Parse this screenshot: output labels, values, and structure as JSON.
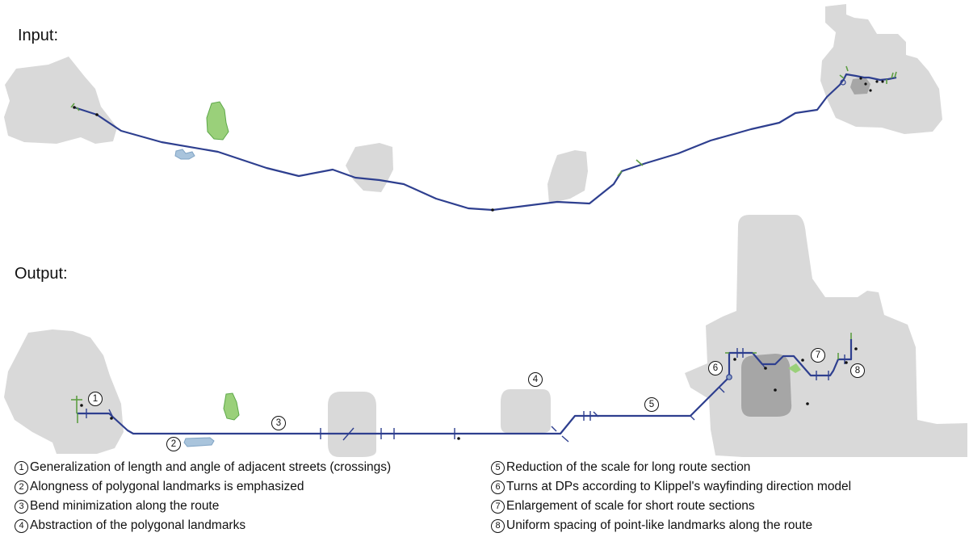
{
  "labels": {
    "input": "Input:",
    "output": "Output:"
  },
  "colors": {
    "settlement": "#d9d9d9",
    "settlement_dark": "#a6a6a6",
    "route": "#2e3f8f",
    "park": "#9ad07a",
    "park_stroke": "#5ea84a",
    "water": "#a9c4dc",
    "side_street": "#5e9e43"
  },
  "markers": [
    {
      "num": "1"
    },
    {
      "num": "2"
    },
    {
      "num": "3"
    },
    {
      "num": "4"
    },
    {
      "num": "5"
    },
    {
      "num": "6"
    },
    {
      "num": "7"
    },
    {
      "num": "8"
    }
  ],
  "legend": [
    {
      "num": "1",
      "text": "Generalization of length and angle of adjacent streets (crossings)"
    },
    {
      "num": "2",
      "text": "Alongness of polygonal landmarks is emphasized"
    },
    {
      "num": "3",
      "text": "Bend minimization along the route"
    },
    {
      "num": "4",
      "text": "Abstraction of the polygonal landmarks"
    },
    {
      "num": "5",
      "text": "Reduction of the scale for long route section"
    },
    {
      "num": "6",
      "text": "Turns at DPs according to Klippel's wayfinding direction model"
    },
    {
      "num": "7",
      "text": "Enlargement of scale for short route sections"
    },
    {
      "num": "8",
      "text": "Uniform spacing of point-like landmarks along the route"
    }
  ]
}
